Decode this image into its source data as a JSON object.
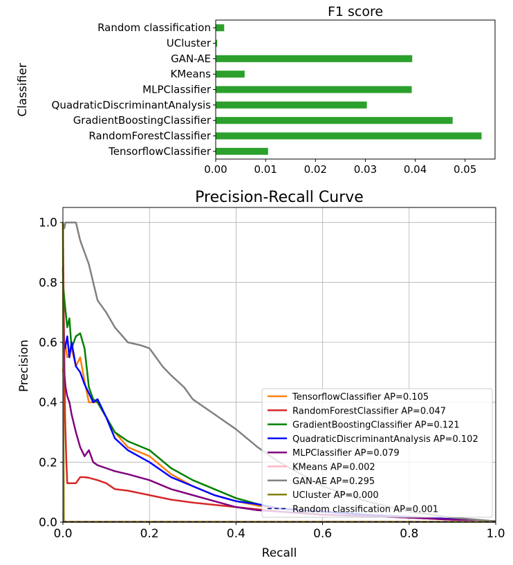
{
  "chart_data": [
    {
      "type": "bar",
      "orientation": "horizontal",
      "title": "F1 score",
      "ylabel": "Classifier",
      "xlabel": "",
      "categories": [
        "Random classification",
        "UCluster",
        "GAN-AE",
        "KMeans",
        "MLPClassifier",
        "QuadraticDiscriminantAnalysis",
        "GradientBoostingClassifier",
        "RandomForestClassifier",
        "TensorflowClassifier"
      ],
      "values": [
        0.0017,
        0.0003,
        0.0394,
        0.0058,
        0.0393,
        0.0303,
        0.0475,
        0.0533,
        0.0105
      ],
      "xlim": [
        0,
        0.056
      ],
      "xticks": [
        "0.00",
        "0.01",
        "0.02",
        "0.03",
        "0.04",
        "0.05"
      ],
      "bar_color": "#2ca02c",
      "grid": false
    },
    {
      "type": "line",
      "title": "Precision-Recall Curve",
      "xlabel": "Recall",
      "ylabel": "Precision",
      "xlim": [
        0,
        1
      ],
      "ylim": [
        0,
        1.05
      ],
      "xticks": [
        "0.0",
        "0.2",
        "0.4",
        "0.6",
        "0.8",
        "1.0"
      ],
      "yticks": [
        "0.0",
        "0.2",
        "0.4",
        "0.6",
        "0.8",
        "1.0"
      ],
      "grid": true,
      "legend_position": "lower-right",
      "series": [
        {
          "name": "TensorflowClassifier AP=0.105",
          "color": "#ff7f0e",
          "dashed": false,
          "x": [
            0,
            0.005,
            0.01,
            0.02,
            0.03,
            0.04,
            0.05,
            0.06,
            0.08,
            0.1,
            0.12,
            0.15,
            0.2,
            0.25,
            0.3,
            0.35,
            0.4,
            0.45,
            0.5,
            0.6,
            0.7,
            0.8,
            0.9,
            1.0
          ],
          "y": [
            0.5,
            0.6,
            0.55,
            0.58,
            0.52,
            0.55,
            0.47,
            0.4,
            0.4,
            0.35,
            0.3,
            0.25,
            0.22,
            0.16,
            0.12,
            0.09,
            0.07,
            0.055,
            0.045,
            0.035,
            0.025,
            0.018,
            0.01,
            0.003
          ]
        },
        {
          "name": "RandomForestClassifier AP=0.047",
          "color": "#d62728",
          "dashed": false,
          "x": [
            0,
            0.002,
            0.005,
            0.008,
            0.01,
            0.02,
            0.03,
            0.04,
            0.05,
            0.06,
            0.08,
            0.1,
            0.12,
            0.15,
            0.2,
            0.25,
            0.3,
            0.4,
            0.5,
            0.6,
            0.7,
            0.8,
            0.9,
            1.0
          ],
          "y": [
            1.0,
            0.7,
            0.35,
            0.2,
            0.13,
            0.13,
            0.13,
            0.15,
            0.15,
            0.148,
            0.14,
            0.13,
            0.11,
            0.105,
            0.09,
            0.075,
            0.065,
            0.05,
            0.035,
            0.025,
            0.02,
            0.015,
            0.008,
            0.003
          ]
        },
        {
          "name": "GradientBoostingClassifier AP=0.121",
          "color": "#008000",
          "dashed": false,
          "x": [
            0,
            0.005,
            0.01,
            0.015,
            0.02,
            0.03,
            0.04,
            0.05,
            0.06,
            0.07,
            0.08,
            0.1,
            0.12,
            0.15,
            0.2,
            0.25,
            0.3,
            0.35,
            0.4,
            0.45,
            0.5,
            0.6,
            0.7,
            0.8,
            0.9,
            1.0
          ],
          "y": [
            0.8,
            0.72,
            0.65,
            0.68,
            0.58,
            0.62,
            0.63,
            0.58,
            0.45,
            0.41,
            0.4,
            0.35,
            0.3,
            0.27,
            0.24,
            0.18,
            0.14,
            0.11,
            0.08,
            0.06,
            0.045,
            0.035,
            0.025,
            0.015,
            0.01,
            0.003
          ]
        },
        {
          "name": "QuadraticDiscriminantAnalysis AP=0.102",
          "color": "#0000ff",
          "dashed": false,
          "x": [
            0,
            0.005,
            0.01,
            0.015,
            0.02,
            0.03,
            0.04,
            0.05,
            0.06,
            0.07,
            0.08,
            0.1,
            0.12,
            0.15,
            0.2,
            0.25,
            0.3,
            0.35,
            0.4,
            0.45,
            0.5,
            0.6,
            0.7,
            0.8,
            0.9,
            1.0
          ],
          "y": [
            0.6,
            0.58,
            0.62,
            0.55,
            0.6,
            0.52,
            0.5,
            0.46,
            0.43,
            0.4,
            0.41,
            0.35,
            0.28,
            0.24,
            0.2,
            0.15,
            0.12,
            0.09,
            0.07,
            0.06,
            0.045,
            0.035,
            0.025,
            0.017,
            0.01,
            0.003
          ]
        },
        {
          "name": "MLPClassifier AP=0.079",
          "color": "#800080",
          "dashed": false,
          "x": [
            0,
            0.003,
            0.006,
            0.01,
            0.015,
            0.02,
            0.03,
            0.04,
            0.05,
            0.06,
            0.07,
            0.08,
            0.1,
            0.12,
            0.15,
            0.2,
            0.25,
            0.3,
            0.35,
            0.4,
            0.45,
            0.5,
            0.6,
            0.7,
            0.8,
            0.9,
            1.0
          ],
          "y": [
            0.85,
            0.5,
            0.45,
            0.42,
            0.4,
            0.36,
            0.3,
            0.25,
            0.22,
            0.24,
            0.2,
            0.19,
            0.18,
            0.17,
            0.16,
            0.14,
            0.11,
            0.09,
            0.07,
            0.05,
            0.04,
            0.035,
            0.025,
            0.02,
            0.015,
            0.008,
            0.003
          ]
        },
        {
          "name": "KMeans AP=0.002",
          "color": "#ffb6c1",
          "dashed": false,
          "x": [
            0,
            0.005,
            1.0
          ],
          "y": [
            0.002,
            0.002,
            0.002
          ]
        },
        {
          "name": "GAN-AE AP=0.295",
          "color": "#808080",
          "dashed": false,
          "x": [
            0,
            0.003,
            0.006,
            0.01,
            0.02,
            0.03,
            0.04,
            0.05,
            0.06,
            0.07,
            0.08,
            0.1,
            0.12,
            0.15,
            0.18,
            0.2,
            0.23,
            0.25,
            0.28,
            0.3,
            0.35,
            0.4,
            0.45,
            0.5,
            0.55,
            0.6,
            0.7,
            0.8,
            0.9,
            1.0
          ],
          "y": [
            1.0,
            0.98,
            1.0,
            1.0,
            1.0,
            1.0,
            0.94,
            0.9,
            0.86,
            0.8,
            0.74,
            0.7,
            0.65,
            0.6,
            0.59,
            0.58,
            0.52,
            0.49,
            0.45,
            0.41,
            0.36,
            0.31,
            0.25,
            0.2,
            0.16,
            0.12,
            0.07,
            0.035,
            0.015,
            0.003
          ]
        },
        {
          "name": "UCluster AP=0.000",
          "color": "#808000",
          "dashed": false,
          "x": [
            0,
            0.002,
            1.0
          ],
          "y": [
            1.0,
            0.001,
            0.001
          ]
        },
        {
          "name": "Random classification AP=0.001",
          "color": "#000080",
          "dashed": true,
          "x": [
            0,
            1.0
          ],
          "y": [
            0.001,
            0.001
          ]
        }
      ]
    }
  ]
}
